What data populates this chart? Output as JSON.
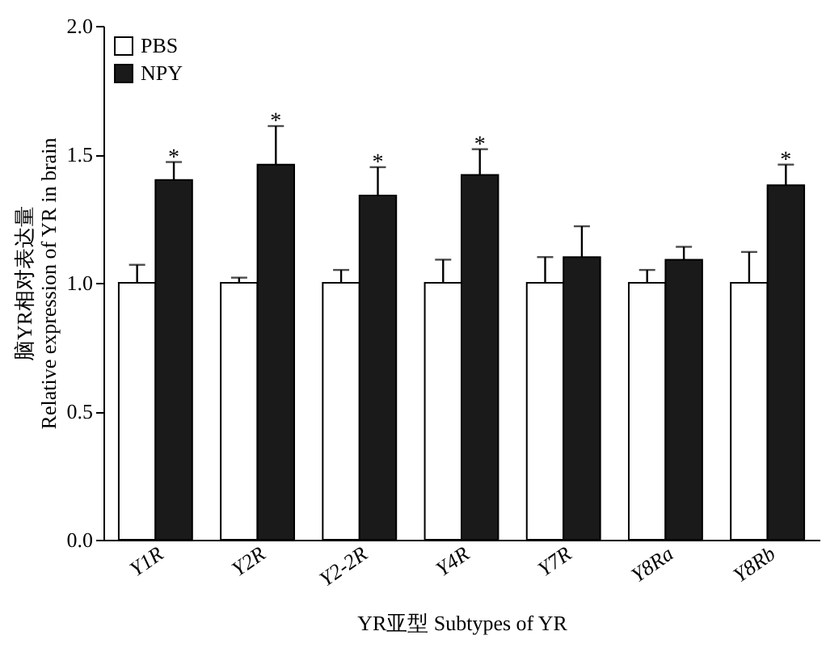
{
  "chart_data": {
    "type": "bar",
    "xlabel": "YR亚型  Subtypes of YR",
    "ylabel": [
      "脑YR相对表达量",
      "Relative expression of YR  in brain"
    ],
    "categories": [
      "Y1R",
      "Y2R",
      "Y2-2R",
      "Y4R",
      "Y7R",
      "Y8Ra",
      "Y8Rb"
    ],
    "series": [
      {
        "name": "PBS",
        "color": "#ffffff",
        "values": [
          1.0,
          1.0,
          1.0,
          1.0,
          1.0,
          1.0,
          1.0
        ],
        "errors": [
          [
            1.0,
            1.07
          ],
          [
            1.0,
            1.02
          ],
          [
            1.0,
            1.05
          ],
          [
            1.0,
            1.09
          ],
          [
            1.0,
            1.1
          ],
          [
            1.0,
            1.05
          ],
          [
            1.0,
            1.12
          ]
        ]
      },
      {
        "name": "NPY",
        "color": "#1a1a1a",
        "values": [
          1.4,
          1.46,
          1.34,
          1.42,
          1.1,
          1.09,
          1.38
        ],
        "errors": [
          [
            1.4,
            1.47
          ],
          [
            1.46,
            1.61
          ],
          [
            1.34,
            1.45
          ],
          [
            1.42,
            1.52
          ],
          [
            1.1,
            1.22
          ],
          [
            1.09,
            1.14
          ],
          [
            1.38,
            1.46
          ]
        ]
      }
    ],
    "annotations": [
      {
        "text": "*",
        "x": "Y1R",
        "y": 1.47
      },
      {
        "text": "*",
        "x": "Y2R",
        "y": 1.61
      },
      {
        "text": "*",
        "x": "Y2-2R",
        "y": 1.45
      },
      {
        "text": "*",
        "x": "Y4R",
        "y": 1.52
      },
      {
        "text": "*",
        "x": "Y8Rb",
        "y": 1.46
      }
    ],
    "ylim": [
      0,
      2.0
    ],
    "yticks": [
      {
        "value": 0,
        "label": "0.0"
      },
      0.5,
      {
        "value": 1,
        "label": "1.0"
      },
      1.5,
      {
        "value": 2,
        "label": "2.0"
      }
    ],
    "grid": false,
    "legend": "top left"
  }
}
